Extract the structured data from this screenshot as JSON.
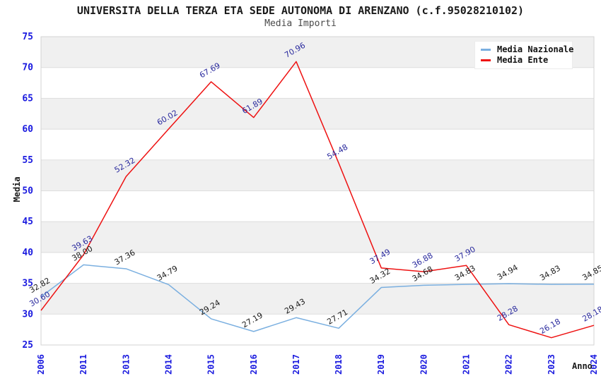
{
  "header": {
    "title": "UNIVERSITA DELLA TERZA ETA SEDE AUTONOMA DI ARENZANO (c.f.95028210102)",
    "subtitle": "Media Importi"
  },
  "chart_data": {
    "type": "line",
    "title": "UNIVERSITA DELLA TERZA ETA SEDE AUTONOMA DI ARENZANO (c.f.95028210102)",
    "subtitle": "Media Importi",
    "xlabel": "Anno",
    "ylabel": "Media",
    "ylim": [
      25,
      75
    ],
    "ytick_step": 5,
    "yticks": [
      25,
      30,
      35,
      40,
      45,
      50,
      55,
      60,
      65,
      70,
      75
    ],
    "grid": "horizontal-bands",
    "legend_position": "top-right-inside",
    "categories": [
      "2006",
      "2011",
      "2013",
      "2014",
      "2015",
      "2016",
      "2017",
      "2018",
      "2019",
      "2020",
      "2021",
      "2022",
      "2023",
      "2024"
    ],
    "series": [
      {
        "name": "Media Nazionale",
        "color": "#7aafe0",
        "label_color": "#1a1a1a",
        "values": [
          32.82,
          38.0,
          37.36,
          34.79,
          29.24,
          27.19,
          29.43,
          27.71,
          34.32,
          34.68,
          34.83,
          34.94,
          34.83,
          34.85
        ]
      },
      {
        "name": "Media Ente",
        "color": "#ee1111",
        "label_color": "#2a2a9e",
        "values": [
          30.6,
          39.63,
          52.32,
          60.02,
          67.69,
          61.89,
          70.96,
          54.48,
          37.49,
          36.88,
          37.9,
          28.28,
          26.18,
          28.18
        ]
      }
    ],
    "colors": {
      "tick_label": "#1a1adf",
      "axis_title": "#1a1a1a",
      "band_gray": "#f0f0f0",
      "band_white": "#ffffff",
      "gridline": "#dddddd",
      "plot_border": "#d3d3d3"
    }
  }
}
